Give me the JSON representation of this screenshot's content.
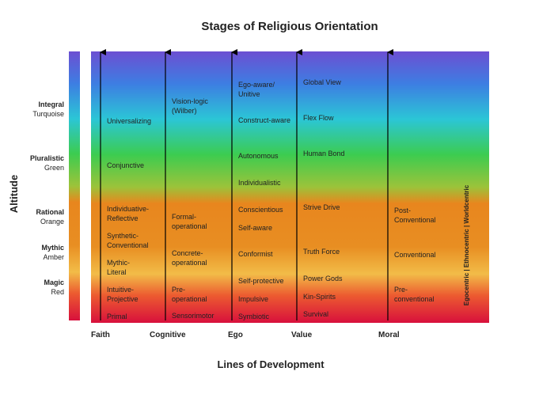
{
  "title": "Stages of Religious Orientation",
  "y_axis_label": "Altitude",
  "x_axis_label": "Lines of Development",
  "perspective": "Egocentric | Ethnocentric | Worldcentric",
  "altitudes": [
    {
      "name": "Integral",
      "color": "Turquoise"
    },
    {
      "name": "Pluralistic",
      "color": "Green"
    },
    {
      "name": "Rational",
      "color": "Orange"
    },
    {
      "name": "Mythic",
      "color": "Amber"
    },
    {
      "name": "Magic",
      "color": "Red"
    }
  ],
  "lines": [
    {
      "name": "Faith",
      "stages": [
        "Universalizing",
        "Conjunctive",
        "Individuative-\nReflective",
        "Synthetic-\nConventional",
        "Mythic-\nLiteral",
        "Intuitive-\nProjective",
        "Primal"
      ]
    },
    {
      "name": "Cognitive",
      "stages": [
        "Vision-logic\n(Wilber)",
        "Formal-\noperational",
        "Concrete-\noperational",
        "Pre-\noperational",
        "Sensorimotor"
      ]
    },
    {
      "name": "Ego",
      "stages": [
        "Ego-aware/\nUnitive",
        "Construct-aware",
        "Autonomous",
        "Individualistic",
        "Conscientious",
        "Self-aware",
        "Conformist",
        "Self-protective",
        "Impulsive",
        "Symbiotic"
      ]
    },
    {
      "name": "Value",
      "stages": [
        "Global View",
        "Flex Flow",
        "Human Bond",
        "Strive Drive",
        "Truth Force",
        "Power Gods",
        "Kin-Spirits",
        "Survival"
      ]
    },
    {
      "name": "Moral",
      "stages": [
        "Post-\nConventional",
        "Conventional",
        "Pre-\nconventional"
      ]
    }
  ]
}
